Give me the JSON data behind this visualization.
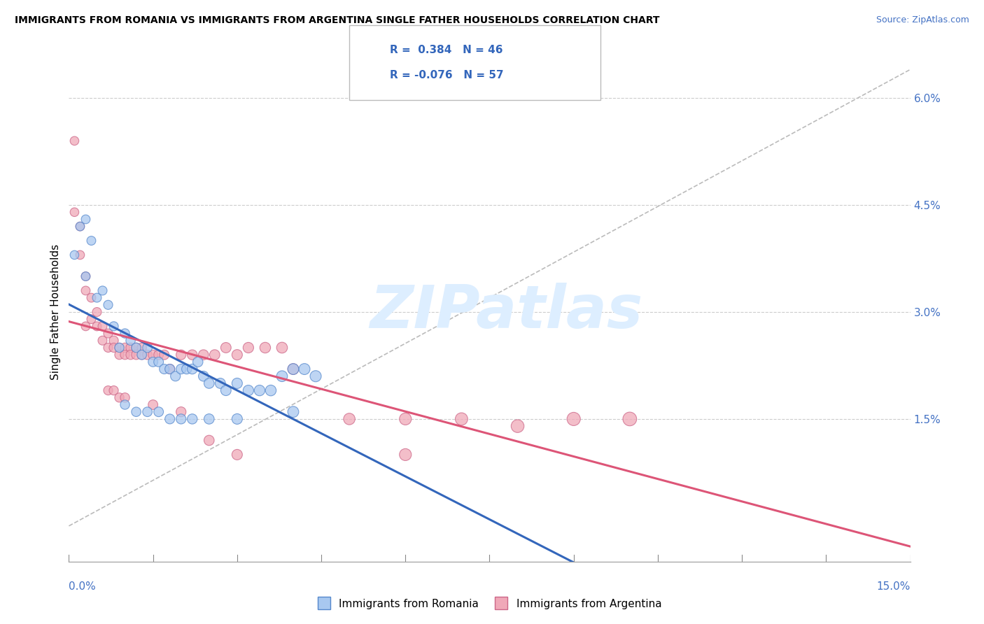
{
  "title": "IMMIGRANTS FROM ROMANIA VS IMMIGRANTS FROM ARGENTINA SINGLE FATHER HOUSEHOLDS CORRELATION CHART",
  "source": "Source: ZipAtlas.com",
  "ylabel": "Single Father Households",
  "xmin": 0.0,
  "xmax": 0.15,
  "ymin": -0.005,
  "ymax": 0.065,
  "romania_R": 0.384,
  "romania_N": 46,
  "argentina_R": -0.076,
  "argentina_N": 57,
  "romania_color": "#a8c8f0",
  "argentina_color": "#f0a8b8",
  "romania_edge_color": "#5588cc",
  "argentina_edge_color": "#cc6688",
  "romania_line_color": "#3366bb",
  "argentina_line_color": "#dd5577",
  "right_ytick_vals": [
    0.0,
    0.015,
    0.03,
    0.045,
    0.06
  ],
  "right_yticklabels": [
    "",
    "1.5%",
    "3.0%",
    "4.5%",
    "6.0%"
  ],
  "watermark_text": "ZIPatlas",
  "watermark_color": "#ddeeff",
  "romania_scatter": [
    [
      0.001,
      0.038
    ],
    [
      0.002,
      0.042
    ],
    [
      0.003,
      0.043
    ],
    [
      0.003,
      0.035
    ],
    [
      0.004,
      0.04
    ],
    [
      0.005,
      0.032
    ],
    [
      0.006,
      0.033
    ],
    [
      0.007,
      0.031
    ],
    [
      0.008,
      0.028
    ],
    [
      0.009,
      0.025
    ],
    [
      0.01,
      0.027
    ],
    [
      0.011,
      0.026
    ],
    [
      0.012,
      0.025
    ],
    [
      0.013,
      0.024
    ],
    [
      0.014,
      0.025
    ],
    [
      0.015,
      0.023
    ],
    [
      0.016,
      0.023
    ],
    [
      0.017,
      0.022
    ],
    [
      0.018,
      0.022
    ],
    [
      0.019,
      0.021
    ],
    [
      0.02,
      0.022
    ],
    [
      0.021,
      0.022
    ],
    [
      0.022,
      0.022
    ],
    [
      0.023,
      0.023
    ],
    [
      0.024,
      0.021
    ],
    [
      0.025,
      0.02
    ],
    [
      0.027,
      0.02
    ],
    [
      0.028,
      0.019
    ],
    [
      0.03,
      0.02
    ],
    [
      0.032,
      0.019
    ],
    [
      0.034,
      0.019
    ],
    [
      0.036,
      0.019
    ],
    [
      0.038,
      0.021
    ],
    [
      0.04,
      0.022
    ],
    [
      0.042,
      0.022
    ],
    [
      0.044,
      0.021
    ],
    [
      0.01,
      0.017
    ],
    [
      0.012,
      0.016
    ],
    [
      0.014,
      0.016
    ],
    [
      0.016,
      0.016
    ],
    [
      0.018,
      0.015
    ],
    [
      0.02,
      0.015
    ],
    [
      0.022,
      0.015
    ],
    [
      0.025,
      0.015
    ],
    [
      0.03,
      0.015
    ],
    [
      0.04,
      0.016
    ]
  ],
  "argentina_scatter": [
    [
      0.001,
      0.054
    ],
    [
      0.001,
      0.044
    ],
    [
      0.002,
      0.042
    ],
    [
      0.002,
      0.038
    ],
    [
      0.003,
      0.035
    ],
    [
      0.003,
      0.033
    ],
    [
      0.003,
      0.028
    ],
    [
      0.004,
      0.032
    ],
    [
      0.004,
      0.029
    ],
    [
      0.005,
      0.03
    ],
    [
      0.005,
      0.028
    ],
    [
      0.006,
      0.028
    ],
    [
      0.006,
      0.026
    ],
    [
      0.007,
      0.027
    ],
    [
      0.007,
      0.025
    ],
    [
      0.008,
      0.026
    ],
    [
      0.008,
      0.025
    ],
    [
      0.009,
      0.025
    ],
    [
      0.009,
      0.024
    ],
    [
      0.01,
      0.025
    ],
    [
      0.01,
      0.024
    ],
    [
      0.011,
      0.025
    ],
    [
      0.011,
      0.024
    ],
    [
      0.012,
      0.025
    ],
    [
      0.012,
      0.024
    ],
    [
      0.013,
      0.025
    ],
    [
      0.013,
      0.024
    ],
    [
      0.014,
      0.024
    ],
    [
      0.015,
      0.024
    ],
    [
      0.016,
      0.024
    ],
    [
      0.017,
      0.024
    ],
    [
      0.018,
      0.022
    ],
    [
      0.02,
      0.024
    ],
    [
      0.022,
      0.024
    ],
    [
      0.024,
      0.024
    ],
    [
      0.026,
      0.024
    ],
    [
      0.028,
      0.025
    ],
    [
      0.03,
      0.024
    ],
    [
      0.032,
      0.025
    ],
    [
      0.035,
      0.025
    ],
    [
      0.038,
      0.025
    ],
    [
      0.04,
      0.022
    ],
    [
      0.05,
      0.015
    ],
    [
      0.06,
      0.015
    ],
    [
      0.07,
      0.015
    ],
    [
      0.08,
      0.014
    ],
    [
      0.09,
      0.015
    ],
    [
      0.1,
      0.015
    ],
    [
      0.007,
      0.019
    ],
    [
      0.008,
      0.019
    ],
    [
      0.009,
      0.018
    ],
    [
      0.01,
      0.018
    ],
    [
      0.015,
      0.017
    ],
    [
      0.02,
      0.016
    ],
    [
      0.025,
      0.012
    ],
    [
      0.03,
      0.01
    ],
    [
      0.06,
      0.01
    ]
  ]
}
